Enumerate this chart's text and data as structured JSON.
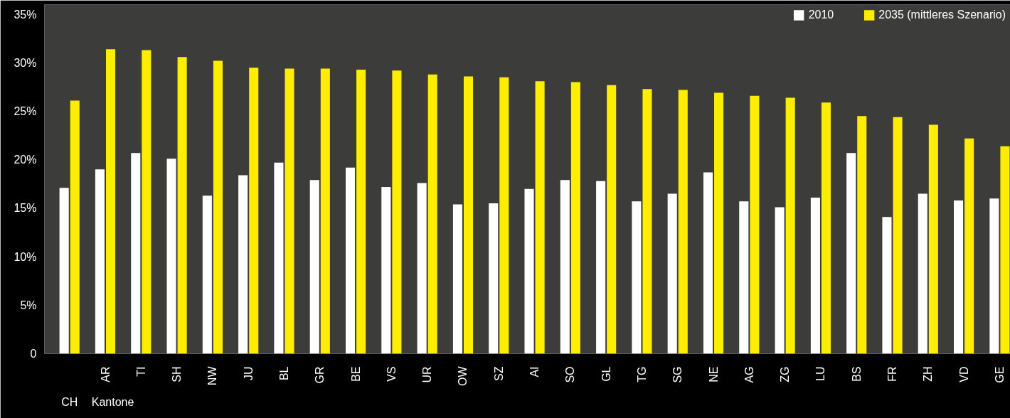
{
  "chart_data": {
    "type": "bar",
    "categories": [
      null,
      "AR",
      "TI",
      "SH",
      "NW",
      "JU",
      "BL",
      "GR",
      "BE",
      "VS",
      "UR",
      "OW",
      "SZ",
      "AI",
      "SO",
      "GL",
      "TG",
      "SG",
      "NE",
      "AG",
      "ZG",
      "LU",
      "BS",
      "FR",
      "ZH",
      "VD",
      "GE"
    ],
    "series": [
      {
        "name": "2010",
        "color": "#ffffff",
        "values": [
          17.1,
          19.0,
          20.7,
          20.1,
          16.3,
          18.4,
          19.7,
          17.9,
          19.2,
          17.2,
          17.6,
          15.4,
          15.5,
          17.0,
          17.9,
          17.8,
          15.7,
          16.5,
          18.7,
          15.7,
          15.1,
          16.1,
          20.7,
          14.1,
          16.5,
          15.8,
          16.0
        ]
      },
      {
        "name": "2035 (mittleres Szenario)",
        "color": "#ffed00",
        "values": [
          26.1,
          31.4,
          31.3,
          30.6,
          30.2,
          29.5,
          29.4,
          29.4,
          29.3,
          29.2,
          28.8,
          28.6,
          28.5,
          28.1,
          28.0,
          27.7,
          27.3,
          27.2,
          26.9,
          26.6,
          26.4,
          25.9,
          24.5,
          24.4,
          23.6,
          22.2,
          21.4
        ]
      }
    ],
    "ylim": [
      0,
      36
    ],
    "yticks": [
      0,
      {
        "value": 5,
        "label": "5%"
      },
      {
        "value": 10,
        "label": "10%"
      },
      {
        "value": 15,
        "label": "15%"
      },
      {
        "value": 20,
        "label": "20%"
      },
      {
        "value": 25,
        "label": "25%"
      },
      {
        "value": 30,
        "label": "30%"
      },
      {
        "value": 35,
        "label": "35%"
      }
    ],
    "annotations": [
      "CH",
      "Kantone"
    ],
    "legend": "top right",
    "grid": false
  }
}
